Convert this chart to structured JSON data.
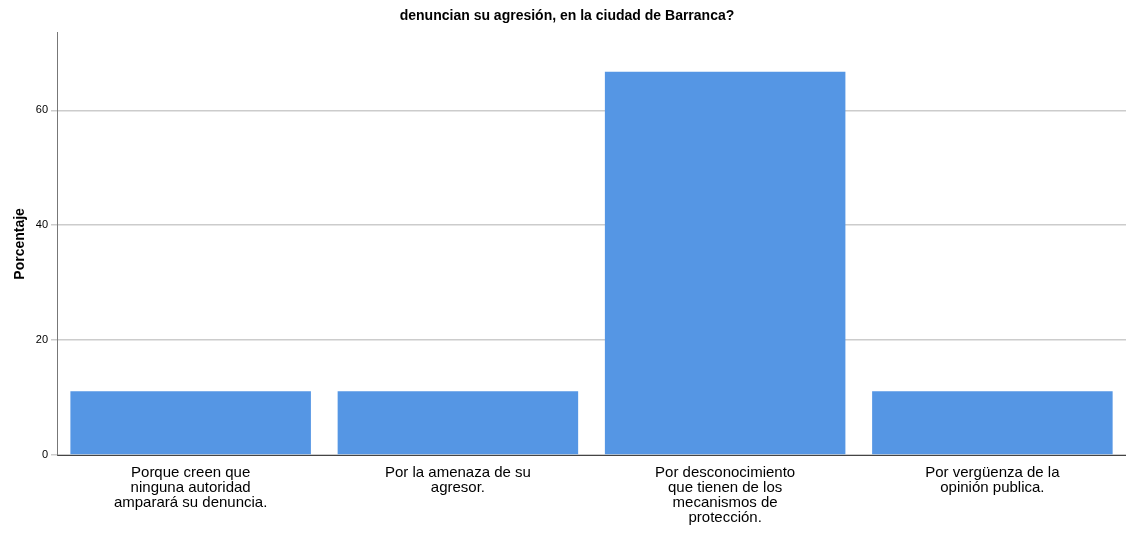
{
  "chart_data": {
    "type": "bar",
    "title": "denuncian su agresión, en la ciudad de Barranca?",
    "ylabel": "Porcentaje",
    "categories": [
      "Porque creen que ninguna autoridad amparará su denuncia.",
      "Por la amenaza de su agresor.",
      "Por desconocimiento que tienen de los mecanismos de protección.",
      "Por vergüenza de la opinión publica."
    ],
    "values": [
      11.1,
      11.1,
      66.7,
      11.1
    ],
    "color": "#5596e4",
    "ylim": [
      0,
      73.5
    ],
    "yticks": [
      0,
      20,
      40,
      60
    ],
    "grid": "y"
  }
}
